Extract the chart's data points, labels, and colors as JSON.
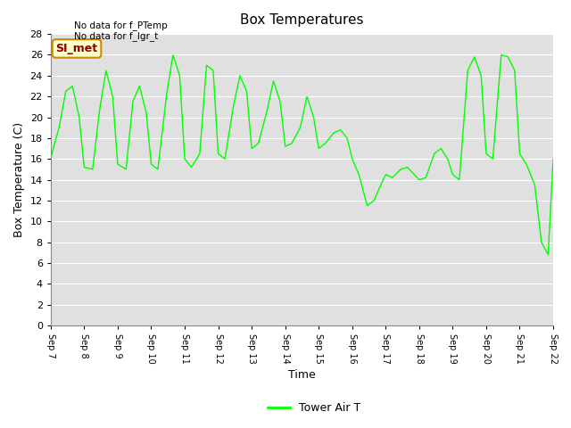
{
  "title": "Box Temperatures",
  "xlabel": "Time",
  "ylabel": "Box Temperature (C)",
  "bg_color": "#e0e0e0",
  "line_color": "#00ff00",
  "ylim": [
    0,
    28
  ],
  "yticks": [
    0,
    2,
    4,
    6,
    8,
    10,
    12,
    14,
    16,
    18,
    20,
    22,
    24,
    26,
    28
  ],
  "xtick_labels": [
    "Sep 7",
    "Sep 8",
    "Sep 9",
    "Sep 10",
    "Sep 11",
    "Sep 12",
    "Sep 13",
    "Sep 14",
    "Sep 15",
    "Sep 16",
    "Sep 17",
    "Sep 18",
    "Sep 19",
    "Sep 20",
    "Sep 21",
    "Sep 22"
  ],
  "no_data_text1": "No data for f_PTemp",
  "no_data_text2": "No data for f_lgr_t",
  "annotation_text": "SI_met",
  "legend_label": "Tower Air T",
  "key_t": [
    0,
    0.25,
    0.45,
    0.65,
    0.85,
    1.0,
    1.25,
    1.45,
    1.65,
    1.85,
    2.0,
    2.25,
    2.45,
    2.65,
    2.85,
    3.0,
    3.2,
    3.45,
    3.65,
    3.85,
    4.0,
    4.2,
    4.45,
    4.65,
    4.85,
    5.0,
    5.2,
    5.45,
    5.65,
    5.85,
    6.0,
    6.2,
    6.45,
    6.65,
    6.85,
    7.0,
    7.2,
    7.45,
    7.65,
    7.85,
    8.0,
    8.2,
    8.45,
    8.65,
    8.85,
    9.0,
    9.2,
    9.45,
    9.65,
    9.85,
    10.0,
    10.2,
    10.45,
    10.65,
    10.85,
    11.0,
    11.2,
    11.45,
    11.65,
    11.85,
    12.0,
    12.2,
    12.45,
    12.65,
    12.85,
    13.0,
    13.2,
    13.45,
    13.65,
    13.85,
    14.0,
    14.2,
    14.45,
    14.65,
    14.85,
    15.0
  ],
  "key_v": [
    16.1,
    19.0,
    22.5,
    23.0,
    20.0,
    15.2,
    15.0,
    20.5,
    24.5,
    22.0,
    15.5,
    15.0,
    21.5,
    23.0,
    20.5,
    15.5,
    15.0,
    22.0,
    26.0,
    24.0,
    16.0,
    15.2,
    16.5,
    25.0,
    24.5,
    16.5,
    16.0,
    21.0,
    24.0,
    22.5,
    17.0,
    17.5,
    20.5,
    23.5,
    21.5,
    17.2,
    17.5,
    19.0,
    22.0,
    20.0,
    17.0,
    17.5,
    18.5,
    18.8,
    18.0,
    16.0,
    14.5,
    11.5,
    12.0,
    13.5,
    14.5,
    14.2,
    15.0,
    15.2,
    14.5,
    14.0,
    14.2,
    16.5,
    17.0,
    16.0,
    14.5,
    14.0,
    24.5,
    25.8,
    24.0,
    16.5,
    16.0,
    26.0,
    25.8,
    24.5,
    16.5,
    15.5,
    13.5,
    8.0,
    6.8,
    16.0
  ]
}
